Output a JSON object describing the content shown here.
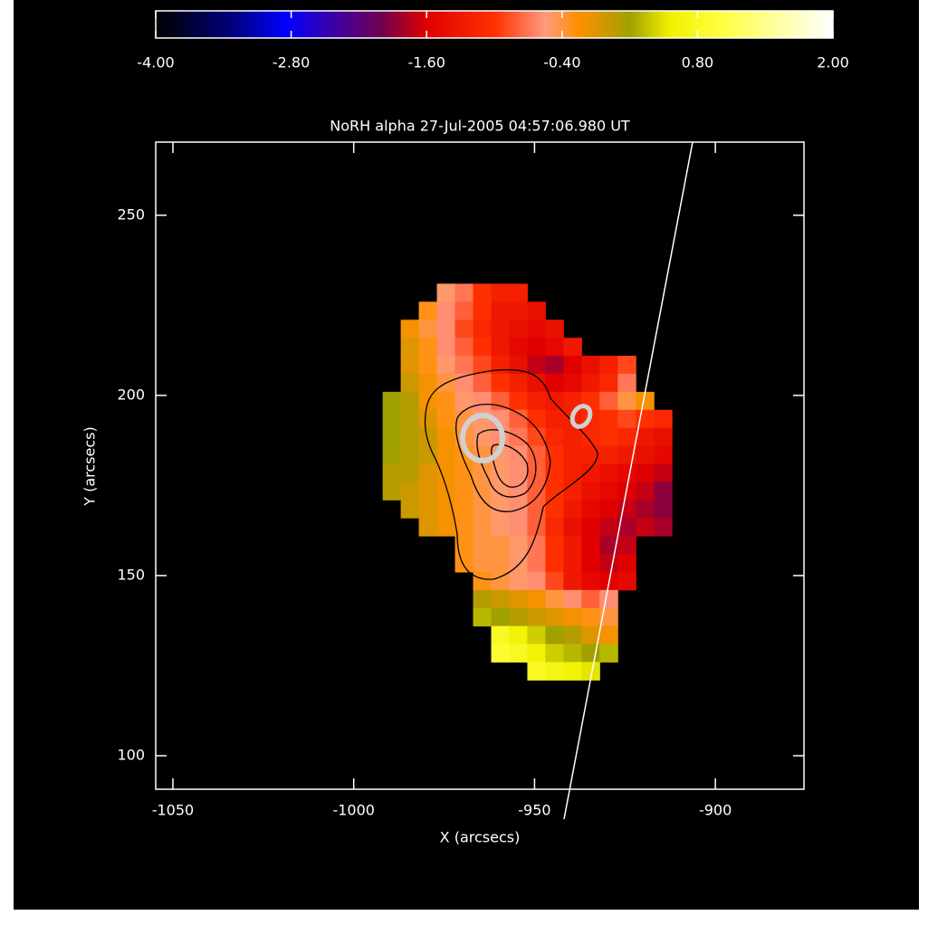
{
  "chart_data": {
    "type": "heatmap",
    "title": "NoRH alpha  27-Jul-2005 04:57:06.980 UT",
    "x_label": "X (arcsecs)",
    "y_label": "Y (arcsecs)",
    "xlim": [
      -1054.75,
      -875.5
    ],
    "ylim": [
      90.7,
      270.3
    ],
    "xticks": [
      -1050,
      -1000,
      -950,
      -900
    ],
    "yticks": [
      100,
      150,
      200,
      250
    ],
    "colorbar": {
      "range": [
        -4,
        2
      ],
      "ticks": [
        {
          "value": -4,
          "label": "-4.00"
        },
        {
          "value": -2.8,
          "label": "-2.80"
        },
        {
          "value": -1.6,
          "label": "-1.60"
        },
        {
          "value": -0.4,
          "label": "-0.40"
        },
        {
          "value": 0.8,
          "label": "0.80"
        },
        {
          "value": 2,
          "label": "2.00"
        }
      ]
    },
    "colorscale": [
      {
        "value": -4,
        "color": "#000000"
      },
      {
        "value": -3.3,
        "color": "#000080"
      },
      {
        "value": -2.85,
        "color": "#0000ff"
      },
      {
        "value": -2.4,
        "color": "#4000a0"
      },
      {
        "value": -2.0,
        "color": "#700050"
      },
      {
        "value": -1.6,
        "color": "#e00000"
      },
      {
        "value": -1.0,
        "color": "#ff3000"
      },
      {
        "value": -0.55,
        "color": "#ff9a80"
      },
      {
        "value": -0.25,
        "color": "#ff9000"
      },
      {
        "value": 0.2,
        "color": "#a0a000"
      },
      {
        "value": 0.55,
        "color": "#f0f000"
      },
      {
        "value": 1.0,
        "color": "#ffff40"
      },
      {
        "value": 2,
        "color": "#ffffff"
      }
    ],
    "x": [
      -989.5,
      -984.5,
      -979.5,
      -974.5,
      -969.5,
      -964.5,
      -959.5,
      -954.5,
      -949.5,
      -944.5,
      -939.5,
      -934.5,
      -929.5,
      -924.5,
      -919.5,
      -914.5
    ],
    "y": [
      228.5,
      223.5,
      218.5,
      213.5,
      208.5,
      203.5,
      198.5,
      193.5,
      188.5,
      183.5,
      178.5,
      173.5,
      168.5,
      163.5,
      158.5,
      153.5,
      148.5,
      143.5,
      138.5,
      133.5,
      128.5,
      123.5
    ],
    "z": [
      [
        null,
        null,
        null,
        -0.5,
        -0.7,
        -1.0,
        -1.2,
        -1.2,
        null,
        null,
        null,
        null,
        null,
        null,
        null,
        null
      ],
      [
        null,
        null,
        -0.3,
        -0.6,
        -0.8,
        -1.0,
        -1.3,
        -1.3,
        -1.4,
        null,
        null,
        null,
        null,
        null,
        null,
        null
      ],
      [
        null,
        -0.2,
        -0.4,
        -0.6,
        -0.9,
        -1.1,
        -1.3,
        -1.4,
        -1.5,
        -1.4,
        null,
        null,
        null,
        null,
        null,
        null
      ],
      [
        null,
        -0.1,
        -0.3,
        -0.6,
        -0.8,
        -1.0,
        -1.3,
        -1.5,
        -1.6,
        -1.5,
        -1.3,
        null,
        null,
        null,
        null,
        null
      ],
      [
        null,
        -0.1,
        -0.3,
        -0.5,
        -0.7,
        -0.9,
        -1.2,
        -1.4,
        -1.7,
        -1.8,
        -1.6,
        -1.4,
        -1.2,
        -0.9,
        null,
        null
      ],
      [
        null,
        0,
        -0.2,
        -0.4,
        -0.6,
        -0.8,
        -1.0,
        -1.2,
        -1.4,
        -1.6,
        -1.5,
        -1.3,
        -1.1,
        -0.7,
        null,
        null
      ],
      [
        0.2,
        0.1,
        -0.2,
        -0.3,
        -0.5,
        -0.6,
        -0.8,
        -1.0,
        -1.2,
        -1.3,
        -1.2,
        -1.0,
        -0.8,
        -0.4,
        -0.2,
        null
      ],
      [
        0.2,
        0.1,
        -0.1,
        -0.3,
        -0.4,
        -0.5,
        -0.6,
        -0.8,
        -1.0,
        -1.2,
        -1.2,
        -1.1,
        -1.0,
        -0.9,
        -1.0,
        -1.1
      ],
      [
        0.2,
        0.1,
        0,
        -0.2,
        -0.4,
        -0.5,
        -0.6,
        -0.7,
        -0.9,
        -1.1,
        -1.2,
        -1.1,
        -1.0,
        -1.1,
        -1.3,
        -1.4
      ],
      [
        0.2,
        0.1,
        0,
        -0.2,
        -0.3,
        -0.4,
        -0.5,
        -0.6,
        -0.8,
        -1.0,
        -1.2,
        -1.2,
        -1.2,
        -1.3,
        -1.4,
        -1.5
      ],
      [
        0.1,
        0.1,
        -0.1,
        -0.2,
        -0.3,
        -0.4,
        -0.5,
        -0.6,
        -0.8,
        -1.0,
        -1.2,
        -1.3,
        -1.4,
        -1.5,
        -1.6,
        -1.7
      ],
      [
        0.1,
        0,
        -0.1,
        -0.2,
        -0.3,
        -0.4,
        -0.5,
        -0.6,
        -0.8,
        -1.0,
        -1.2,
        -1.4,
        -1.5,
        -1.6,
        -1.7,
        -1.9
      ],
      [
        null,
        0,
        -0.1,
        -0.2,
        -0.3,
        -0.4,
        -0.5,
        -0.6,
        -0.8,
        -1.0,
        -1.3,
        -1.5,
        -1.6,
        -1.7,
        -1.8,
        -1.9
      ],
      [
        null,
        null,
        -0.1,
        -0.2,
        -0.3,
        -0.4,
        -0.5,
        -0.6,
        -0.8,
        -1.1,
        -1.4,
        -1.6,
        -1.7,
        -1.8,
        -1.7,
        -1.8
      ],
      [
        null,
        null,
        null,
        null,
        -0.3,
        -0.4,
        -0.4,
        -0.5,
        -0.7,
        -1.0,
        -1.3,
        -1.6,
        -1.8,
        -1.7,
        null,
        null
      ],
      [
        null,
        null,
        null,
        null,
        -0.3,
        -0.4,
        -0.4,
        -0.5,
        -0.7,
        -1.0,
        -1.3,
        -1.6,
        -1.7,
        -1.6,
        null,
        null
      ],
      [
        null,
        null,
        null,
        null,
        null,
        -0.3,
        -0.4,
        -0.5,
        -0.6,
        -0.9,
        -1.3,
        -1.5,
        -1.6,
        -1.5,
        null,
        null
      ],
      [
        null,
        null,
        null,
        null,
        null,
        0.1,
        0,
        -0.1,
        -0.2,
        -0.4,
        -0.6,
        -0.8,
        -0.6,
        null,
        null,
        null
      ],
      [
        null,
        null,
        null,
        null,
        null,
        0.3,
        0.2,
        0.1,
        0,
        -0.1,
        -0.2,
        -0.3,
        -0.4,
        null,
        null,
        null
      ],
      [
        null,
        null,
        null,
        null,
        null,
        null,
        0.8,
        0.6,
        0.4,
        0.2,
        0.1,
        -0.1,
        -0.2,
        null,
        null,
        null
      ],
      [
        null,
        null,
        null,
        null,
        null,
        null,
        0.9,
        0.8,
        0.6,
        0.4,
        0.3,
        0.2,
        0.3,
        null,
        null,
        null
      ],
      [
        null,
        null,
        null,
        null,
        null,
        null,
        null,
        null,
        0.8,
        0.7,
        0.6,
        0.5,
        null,
        null,
        null,
        null
      ]
    ]
  }
}
